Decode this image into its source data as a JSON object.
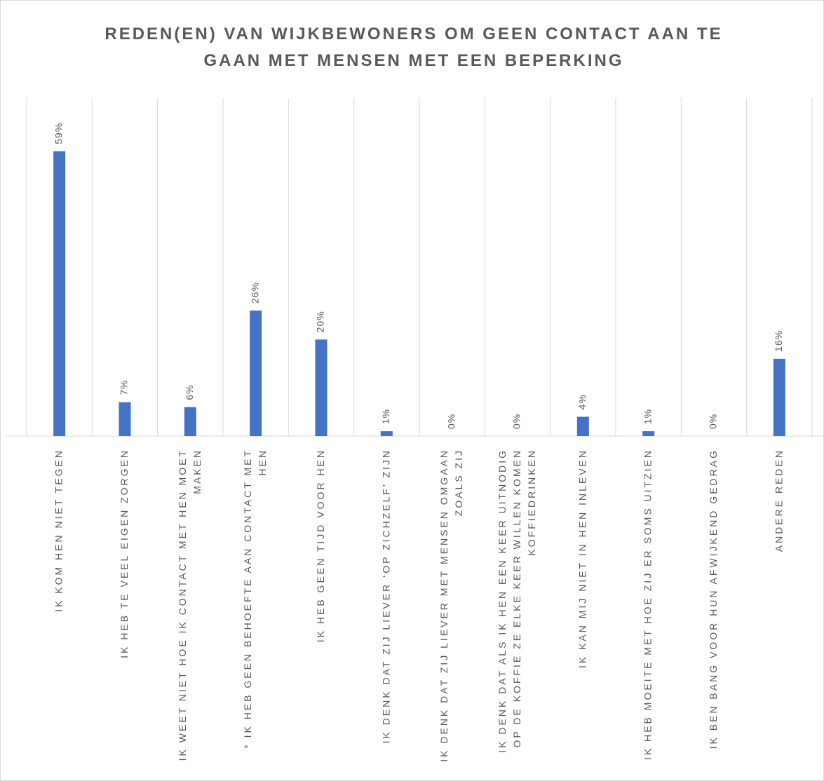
{
  "chart_data": {
    "type": "bar",
    "title": "REDEN(EN) VAN WIJKBEWONERS OM GEEN CONTACT AAN TE GAAN MET MENSEN MET EEN BEPERKING",
    "categories": [
      "IK KOM HEN NIET TEGEN",
      "IK HEB TE VEEL EIGEN ZORGEN",
      "IK WEET NIET HOE IK CONTACT MET HEN MOET MAKEN",
      "* IK HEB GEEN BEHOEFTE AAN CONTACT MET HEN",
      "IK HEB GEEN TIJD VOOR HEN",
      "IK DENK DAT ZIJ LIEVER ‘OP ZICHZELF’ ZIJN",
      "IK DENK DAT ZIJ LIEVER MET MENSEN OMGAAN ZOALS ZIJ",
      "IK DENK DAT ALS IK HEN EEN KEER UITNODIG OP DE KOFFIE ZE ELKE KEER WILLEN KOMEN KOFFIEDRINKEN",
      "IK KAN MIJ NIET IN HEN INLEVEN",
      "IK HEB MOEITE MET HOE ZIJ ER SOMS UITZIEN",
      "IK BEN BANG VOOR HUN AFWIJKEND GEDRAG",
      "ANDERE REDEN"
    ],
    "values": [
      59,
      7,
      6,
      26,
      20,
      1,
      0,
      0,
      4,
      1,
      0,
      16
    ],
    "value_labels": [
      "59%",
      "7%",
      "6%",
      "26%",
      "20%",
      "1%",
      "0%",
      "0%",
      "4%",
      "1%",
      "0%",
      "16%"
    ],
    "color": "#4472c4",
    "ylim": [
      0,
      70
    ],
    "grid": true
  }
}
